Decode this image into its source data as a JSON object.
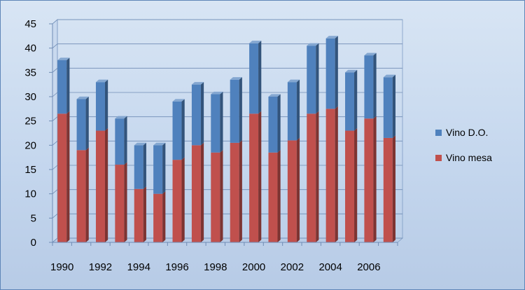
{
  "chart_data": {
    "type": "bar",
    "stacked": true,
    "three_d": true,
    "categories": [
      "1990",
      "1991",
      "1992",
      "1993",
      "1994",
      "1995",
      "1996",
      "1997",
      "1998",
      "1999",
      "2000",
      "2001",
      "2002",
      "2003",
      "2004",
      "2005",
      "2006",
      "2007"
    ],
    "x_tick_labels": [
      "1990",
      "1992",
      "1994",
      "1996",
      "1998",
      "2000",
      "2002",
      "2004",
      "2006"
    ],
    "series": [
      {
        "name": "Vino mesa",
        "color": "#c0504d",
        "values": [
          26.5,
          19,
          23,
          16,
          11,
          10,
          17,
          20,
          18.5,
          20.5,
          26.5,
          18.5,
          21,
          26.5,
          27.5,
          23,
          25.5,
          21.5
        ]
      },
      {
        "name": "Vino D.O.",
        "color": "#4f81bd",
        "values": [
          11,
          10.5,
          10,
          9.5,
          9,
          10,
          12,
          12.5,
          12,
          13,
          14.5,
          11.5,
          12,
          14,
          14.5,
          12,
          13,
          12.5
        ]
      }
    ],
    "ylim": [
      0,
      45
    ],
    "y_ticks": [
      0,
      5,
      10,
      15,
      20,
      25,
      30,
      35,
      40,
      45
    ],
    "grid": true,
    "legend": {
      "position": "right",
      "entries": [
        "Vino D.O.",
        "Vino mesa"
      ]
    },
    "title": "",
    "xlabel": "",
    "ylabel": ""
  }
}
